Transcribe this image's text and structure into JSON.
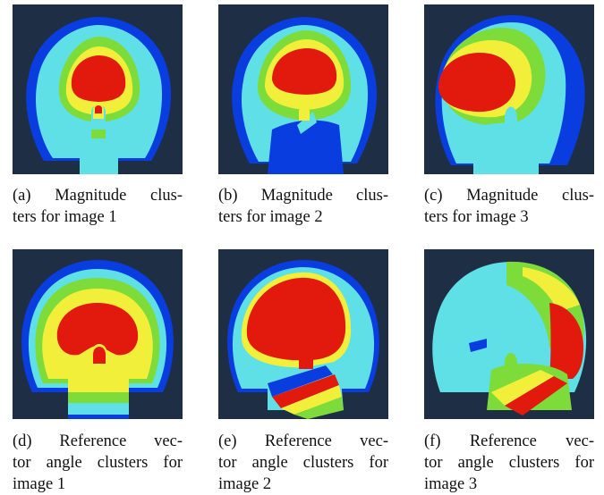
{
  "figure": {
    "panels": [
      {
        "id": "a",
        "caption_line1": "(a) Magnitude clus-",
        "caption_line2": "ters for image 1"
      },
      {
        "id": "b",
        "caption_line1": "(b) Magnitude clus-",
        "caption_line2": "ters for image 2"
      },
      {
        "id": "c",
        "caption_line1": "(c) Magnitude clus-",
        "caption_line2": "ters for image 3"
      },
      {
        "id": "d",
        "caption_line1": "(d) Reference vec-",
        "caption_line2": "tor angle clusters for",
        "caption_line3": "image 1"
      },
      {
        "id": "e",
        "caption_line1": "(e) Reference vec-",
        "caption_line2": "tor angle clusters for",
        "caption_line3": "image 2"
      },
      {
        "id": "f",
        "caption_line1": "(f) Reference vec-",
        "caption_line2": "tor angle clusters for",
        "caption_line3": "image 3"
      }
    ],
    "colors": {
      "background": "#1e2f45",
      "cyan": "#5ee0e6",
      "blue": "#0a3de0",
      "green": "#7ddc3a",
      "yellow": "#f2ef3a",
      "red": "#e21a0e"
    }
  }
}
